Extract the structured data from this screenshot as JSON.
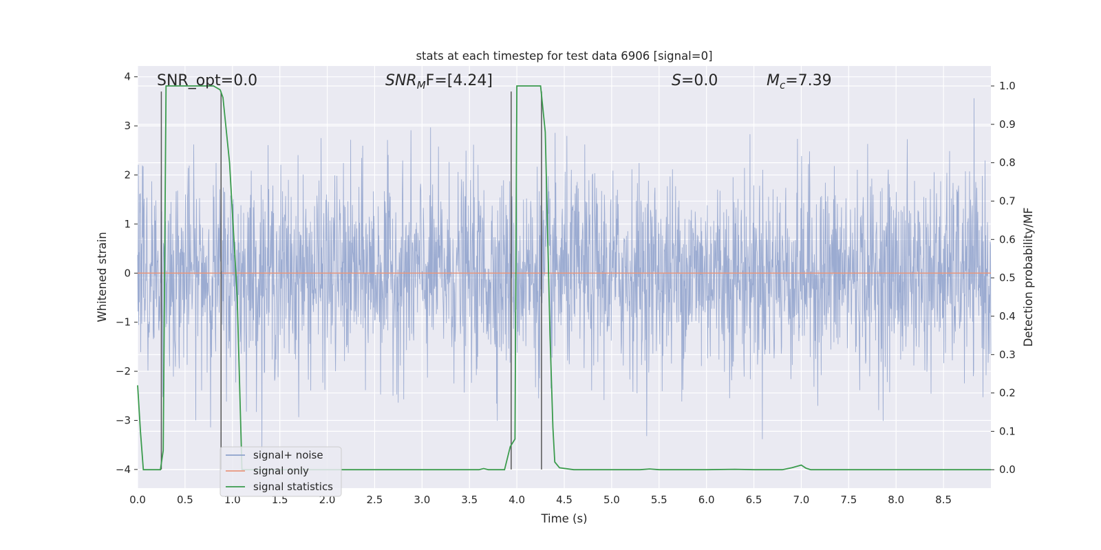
{
  "chart_data": {
    "type": "line",
    "title": "stats at each timestep for test data 6906 [signal=0]",
    "xlabel": "Time (s)",
    "ylabel": "Whitened strain",
    "ylabel_right": "Detection probability/MF",
    "xlim": [
      0.0,
      9.0
    ],
    "ylim": [
      -4.38,
      4.22
    ],
    "ylim_right": [
      -0.048,
      1.052
    ],
    "x_ticks": [
      "0.0",
      "0.5",
      "1.0",
      "1.5",
      "2.0",
      "2.5",
      "3.0",
      "3.5",
      "4.0",
      "4.5",
      "5.0",
      "5.5",
      "6.0",
      "6.5",
      "7.0",
      "7.5",
      "8.0",
      "8.5"
    ],
    "y_ticks": [
      "4",
      "3",
      "2",
      "1",
      "0",
      "−1",
      "−2",
      "−3",
      "−4"
    ],
    "y_right_ticks": [
      "1.0",
      "0.9",
      "0.8",
      "0.7",
      "0.6",
      "0.5",
      "0.4",
      "0.3",
      "0.2",
      "0.1",
      "0.0"
    ],
    "grid": true,
    "legend_position": "lower-left",
    "annotations": {
      "snr_opt": "SNR_opt=0.0",
      "snr_mf_base": "SNR",
      "snr_mf_sub": "M",
      "snr_mf_rest": "F=[4.24]",
      "s_italic": "S",
      "s_rest": "=0.0",
      "mc_base": "M",
      "mc_sub": "c",
      "mc_rest": "=7.39"
    },
    "series": [
      {
        "name": "signal+ noise",
        "color": "#8da0cb",
        "description_values": "whitened noise, roughly gaussian with std ~1, peaks between -3.7 and 3.7",
        "x_range": [
          0.0,
          9.0
        ],
        "amplitude_range": [
          -3.7,
          3.7
        ]
      },
      {
        "name": "signal only",
        "color": "#e8967c",
        "x": [
          0.0,
          9.0
        ],
        "values": [
          0.0,
          0.0
        ]
      },
      {
        "name": "signal statistics",
        "color": "#3a9b4c",
        "x": [
          0.0,
          0.03,
          0.06,
          0.15,
          0.24,
          0.27,
          0.3,
          0.45,
          0.6,
          0.8,
          0.87,
          0.9,
          0.97,
          1.05,
          1.1,
          1.5,
          2.0,
          2.5,
          3.0,
          3.5,
          3.6,
          3.65,
          3.7,
          3.87,
          3.93,
          3.98,
          4.0,
          4.25,
          4.3,
          4.35,
          4.38,
          4.4,
          4.45,
          4.6,
          5.0,
          5.3,
          5.4,
          5.5,
          6.0,
          6.3,
          6.5,
          6.8,
          6.9,
          7.0,
          7.05,
          7.1,
          7.5,
          8.0,
          8.5,
          9.0
        ],
        "values": [
          0.22,
          0.1,
          0.0,
          0.0,
          0.0,
          0.05,
          1.0,
          1.0,
          1.0,
          1.0,
          0.99,
          0.97,
          0.8,
          0.45,
          0.0,
          0.0,
          0.0,
          0.0,
          0.0,
          0.0,
          0.0,
          0.003,
          0.0,
          0.0,
          0.06,
          0.08,
          1.0,
          1.0,
          0.88,
          0.35,
          0.11,
          0.02,
          0.005,
          0.0,
          0.0,
          0.0,
          0.002,
          0.0,
          0.0,
          0.001,
          0.0,
          0.0,
          0.005,
          0.012,
          0.004,
          0.0,
          0.0,
          0.0,
          0.0,
          0.0
        ]
      }
    ],
    "vertical_markers": [
      {
        "color": "#555555",
        "x": 0.25,
        "y_range": [
          -4.0,
          3.7
        ]
      },
      {
        "color": "#555555",
        "x": 0.88,
        "y_range": [
          -4.0,
          3.7
        ]
      },
      {
        "color": "#555555",
        "x": 3.94,
        "y_range": [
          -4.0,
          3.7
        ]
      },
      {
        "color": "#555555",
        "x": 4.26,
        "y_range": [
          -4.0,
          3.7
        ]
      }
    ]
  },
  "colors": {
    "axes_bg": "#eaeaf2",
    "grid": "#ffffff"
  }
}
